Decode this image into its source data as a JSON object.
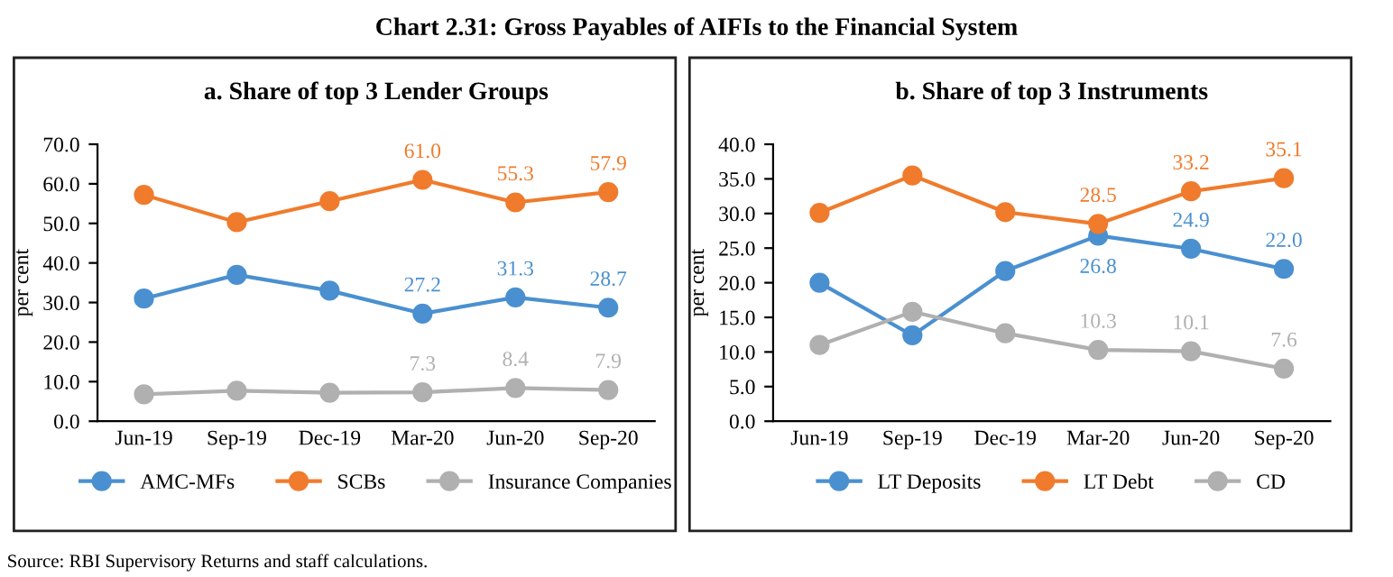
{
  "chart_data": [
    {
      "type": "line",
      "title": "a. Share of top 3 Lender Groups",
      "ylabel": "per cent",
      "categories": [
        "Jun-19",
        "Sep-19",
        "Dec-19",
        "Mar-20",
        "Jun-20",
        "Sep-20"
      ],
      "series": [
        {
          "name": "AMC-MFs",
          "color": "#4a90d0",
          "values": [
            31.0,
            37.0,
            33.0,
            27.2,
            31.3,
            28.7
          ],
          "value_labels": [
            null,
            null,
            null,
            "27.2",
            "31.3",
            "28.7"
          ]
        },
        {
          "name": "SCBs",
          "color": "#f07b2c",
          "values": [
            57.2,
            50.3,
            55.6,
            61.0,
            55.3,
            57.9
          ],
          "value_labels": [
            null,
            null,
            null,
            "61.0",
            "55.3",
            "57.9"
          ]
        },
        {
          "name": "Insurance Companies",
          "color": "#b0b0b0",
          "values": [
            6.8,
            7.7,
            7.2,
            7.3,
            8.4,
            7.9
          ],
          "value_labels": [
            null,
            null,
            null,
            "7.3",
            "8.4",
            "7.9"
          ]
        }
      ],
      "ylim": [
        0,
        70
      ],
      "yticks": [
        {
          "value": 0,
          "label": "0.0"
        },
        {
          "value": 10,
          "label": "10.0"
        },
        {
          "value": 20,
          "label": "20.0"
        },
        {
          "value": 30,
          "label": "30.0"
        },
        {
          "value": 40,
          "label": "40.0"
        },
        {
          "value": 50,
          "label": "50.0"
        },
        {
          "value": 60,
          "label": "60.0"
        },
        {
          "value": 70,
          "label": "70.0"
        }
      ],
      "grid": false,
      "legend": "bottom",
      "marker": "circle",
      "line_style": "solid",
      "annotations": [
        "Chart 2.31: Gross Payables of AIFIs to the Financial System",
        "Source: RBI Supervisory Returns and staff calculations."
      ]
    },
    {
      "type": "line",
      "title": "b. Share of top 3 Instruments",
      "ylabel": "per cent",
      "categories": [
        "Jun-19",
        "Sep-19",
        "Dec-19",
        "Mar-20",
        "Jun-20",
        "Sep-20"
      ],
      "series": [
        {
          "name": "LT Deposits",
          "color": "#4a90d0",
          "values": [
            20.0,
            12.4,
            21.7,
            26.8,
            24.9,
            22.0
          ],
          "value_labels": [
            null,
            null,
            null,
            "26.8",
            "24.9",
            "22.0"
          ]
        },
        {
          "name": "LT Debt",
          "color": "#f07b2c",
          "values": [
            30.1,
            35.5,
            30.2,
            28.5,
            33.2,
            35.1
          ],
          "value_labels": [
            null,
            null,
            null,
            "28.5",
            "33.2",
            "35.1"
          ]
        },
        {
          "name": "CD",
          "color": "#b0b0b0",
          "values": [
            11.0,
            15.8,
            12.7,
            10.3,
            10.1,
            7.6
          ],
          "value_labels": [
            null,
            null,
            null,
            "10.3",
            "10.1",
            "7.6"
          ]
        }
      ],
      "ylim": [
        0,
        40
      ],
      "yticks": [
        {
          "value": 0,
          "label": "0.0"
        },
        {
          "value": 5,
          "label": "5.0"
        },
        {
          "value": 10,
          "label": "10.0"
        },
        {
          "value": 15,
          "label": "15.0"
        },
        {
          "value": 20,
          "label": "20.0"
        },
        {
          "value": 25,
          "label": "25.0"
        },
        {
          "value": 30,
          "label": "30.0"
        },
        {
          "value": 35,
          "label": "35.0"
        },
        {
          "value": 40,
          "label": "40.0"
        }
      ],
      "grid": false,
      "legend": "bottom",
      "marker": "circle",
      "line_style": "solid"
    }
  ]
}
